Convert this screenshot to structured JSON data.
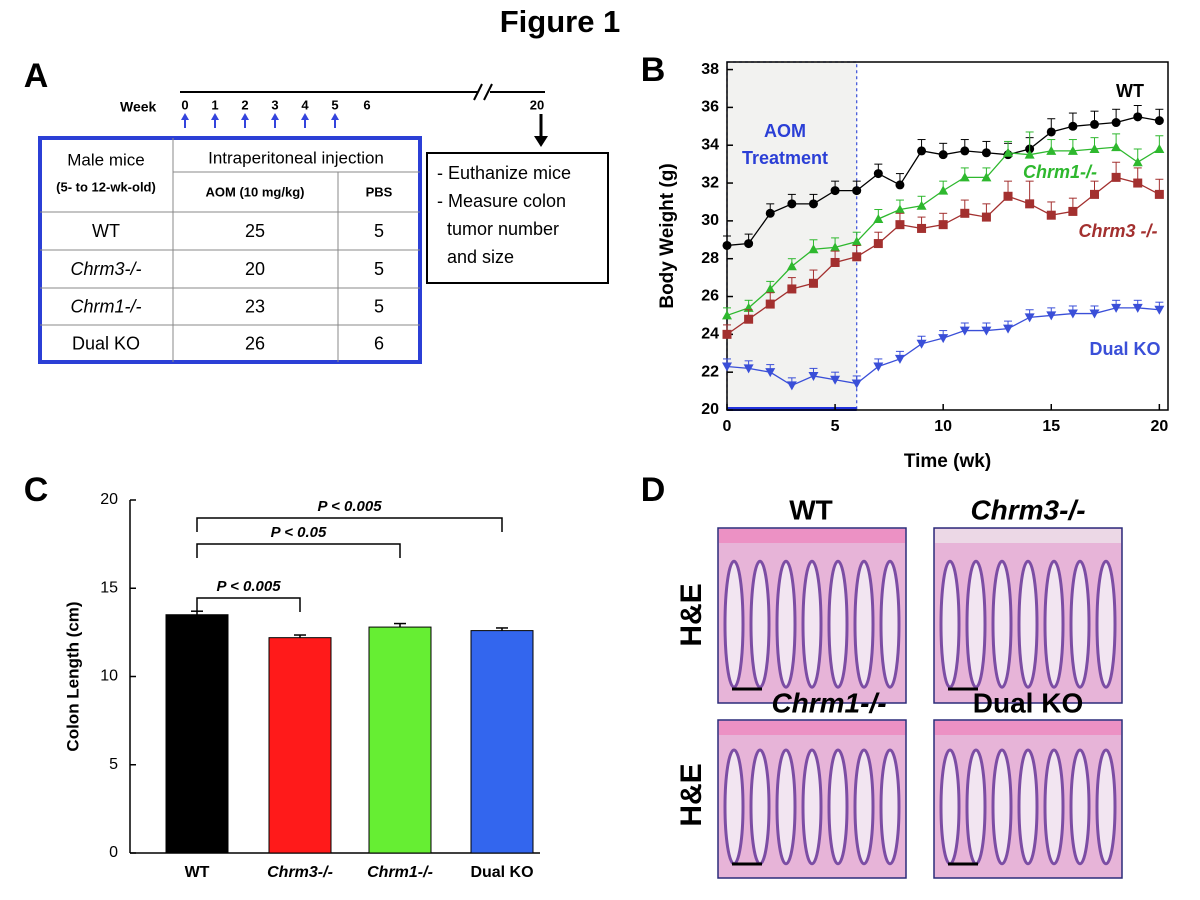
{
  "title": "Figure 1",
  "panel_a": {
    "label": "A",
    "timeline": {
      "week_label": "Week",
      "weeks": [
        0,
        1,
        2,
        3,
        4,
        5,
        6,
        20
      ]
    },
    "table": {
      "header": [
        [
          "Male mice",
          "Intraperitoneal injection"
        ],
        [
          "(5- to 12-wk-old)",
          "AOM (10 mg/kg)",
          "PBS"
        ]
      ],
      "rows": [
        [
          "WT",
          25,
          5
        ],
        [
          "Chrm3-/-",
          20,
          5
        ],
        [
          "Chrm1-/-",
          23,
          5
        ],
        [
          "Dual KO",
          26,
          6
        ]
      ]
    },
    "note_lines": [
      "- Euthanize mice",
      "- Measure colon",
      "  tumor number",
      "  and size"
    ]
  },
  "chart_data": [
    {
      "type": "line",
      "panel": "B",
      "xlabel": "Time (wk)",
      "ylabel": "Body Weight (g)",
      "x": [
        0,
        1,
        2,
        3,
        4,
        5,
        6,
        7,
        8,
        9,
        10,
        11,
        12,
        13,
        14,
        15,
        16,
        17,
        18,
        19,
        20
      ],
      "xlim": [
        0,
        20.4
      ],
      "xticks": [
        0,
        5,
        10,
        15,
        20
      ],
      "ylim": [
        20,
        38.4
      ],
      "yticks": [
        20,
        22,
        24,
        26,
        28,
        30,
        32,
        34,
        36,
        38
      ],
      "annotation": {
        "text_lines": [
          "AOM",
          "Treatment"
        ],
        "x_range": [
          0,
          6
        ]
      },
      "series": [
        {
          "name": "WT",
          "color": "#000000",
          "marker": "o",
          "values": [
            28.7,
            28.8,
            30.4,
            30.9,
            30.9,
            31.6,
            31.6,
            32.5,
            31.9,
            33.7,
            33.5,
            33.7,
            33.6,
            33.5,
            33.8,
            34.7,
            35.0,
            35.1,
            35.2,
            35.5,
            35.3
          ],
          "errors": [
            0.5,
            0.5,
            0.5,
            0.5,
            0.5,
            0.5,
            0.5,
            0.5,
            0.6,
            0.6,
            0.6,
            0.6,
            0.6,
            0.6,
            0.6,
            0.7,
            0.7,
            0.7,
            0.7,
            0.6,
            0.6
          ]
        },
        {
          "name": "Chrm1-/-",
          "color": "#2eb82e",
          "marker": "^",
          "values": [
            25.0,
            25.4,
            26.4,
            27.6,
            28.5,
            28.6,
            28.9,
            30.1,
            30.6,
            30.8,
            31.6,
            32.3,
            32.3,
            33.6,
            33.5,
            33.7,
            33.7,
            33.8,
            33.9,
            33.1,
            33.8
          ],
          "errors": [
            0.4,
            0.4,
            0.4,
            0.4,
            0.5,
            0.5,
            0.5,
            0.5,
            0.5,
            0.5,
            0.5,
            0.5,
            0.5,
            0.6,
            1.2,
            0.6,
            0.6,
            0.6,
            0.7,
            0.7,
            0.7
          ]
        },
        {
          "name": "Chrm3 -/-",
          "color": "#a3302f",
          "marker": "s",
          "values": [
            24.0,
            24.8,
            25.6,
            26.4,
            26.7,
            27.8,
            28.1,
            28.8,
            29.8,
            29.6,
            29.8,
            30.4,
            30.2,
            31.3,
            30.9,
            30.3,
            30.5,
            31.4,
            32.3,
            32.0,
            31.4
          ],
          "errors": [
            0.5,
            0.5,
            0.6,
            0.6,
            0.7,
            0.6,
            0.6,
            0.6,
            0.6,
            0.6,
            0.6,
            0.7,
            0.7,
            0.8,
            1.2,
            0.7,
            0.7,
            0.7,
            0.8,
            0.8,
            0.8
          ]
        },
        {
          "name": "Dual KO",
          "color": "#3a4fd8",
          "marker": "v",
          "values": [
            22.3,
            22.2,
            22.0,
            21.3,
            21.8,
            21.6,
            21.4,
            22.3,
            22.7,
            23.5,
            23.8,
            24.2,
            24.2,
            24.3,
            24.9,
            25.0,
            25.1,
            25.1,
            25.4,
            25.4,
            25.3
          ],
          "errors": [
            0.4,
            0.4,
            0.4,
            0.4,
            0.4,
            0.4,
            0.4,
            0.4,
            0.4,
            0.4,
            0.4,
            0.4,
            0.4,
            0.4,
            0.4,
            0.4,
            0.4,
            0.4,
            0.4,
            0.4,
            0.4
          ]
        }
      ]
    },
    {
      "type": "bar",
      "panel": "C",
      "ylabel": "Colon Length (cm)",
      "categories": [
        "WT",
        "Chrm3-/-",
        "Chrm1-/-",
        "Dual KO"
      ],
      "values": [
        13.5,
        12.2,
        12.8,
        12.6
      ],
      "errors": [
        0.2,
        0.15,
        0.2,
        0.15
      ],
      "colors": [
        "#000000",
        "#ff1a1a",
        "#66ee33",
        "#3366ee"
      ],
      "ylim": [
        0,
        20
      ],
      "yticks": [
        0,
        5,
        10,
        15,
        20
      ],
      "brackets": [
        {
          "from": 0,
          "to": 1,
          "label": "P < 0.005"
        },
        {
          "from": 0,
          "to": 2,
          "label": "P < 0.05"
        },
        {
          "from": 0,
          "to": 3,
          "label": "P < 0.005"
        }
      ]
    }
  ],
  "panel_d": {
    "label": "D",
    "stain": "H&E",
    "images": [
      "WT",
      "Chrm3-/-",
      "Chrm1-/-",
      "Dual KO"
    ]
  }
}
